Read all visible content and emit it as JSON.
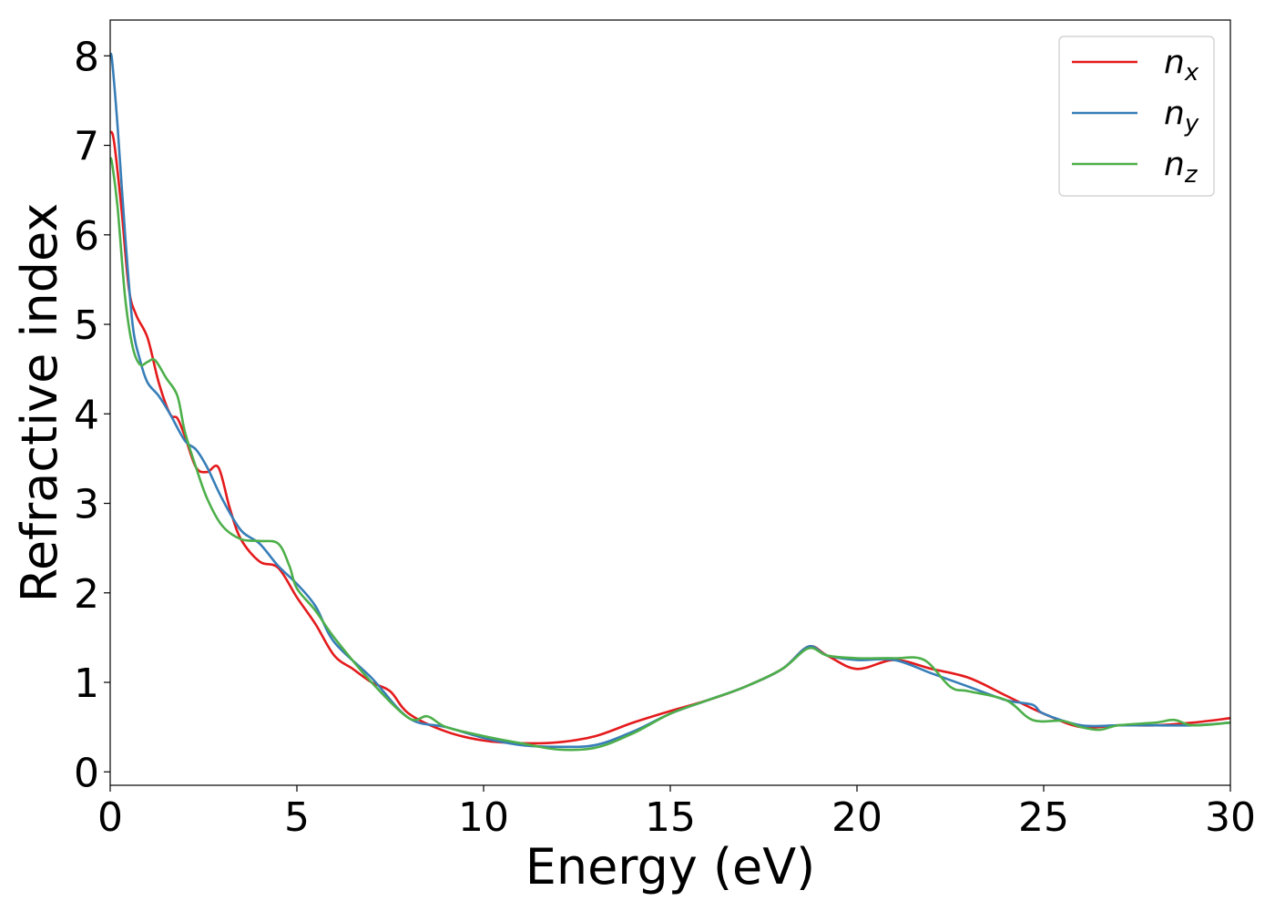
{
  "chart_data": {
    "type": "line",
    "xlabel": "Energy (eV)",
    "ylabel": "Refractive index",
    "xlim": [
      0,
      30
    ],
    "ylim": [
      -0.15,
      8.4
    ],
    "xticks": [
      0,
      5,
      10,
      15,
      20,
      25,
      30
    ],
    "yticks": [
      0,
      1,
      2,
      3,
      4,
      5,
      6,
      7,
      8
    ],
    "grid": false,
    "legend_position": "top-right",
    "series": [
      {
        "name": "n_x",
        "label_main": "n",
        "label_sub": "x",
        "color": "#e41a1c",
        "x": [
          0.0,
          0.1,
          0.3,
          0.5,
          0.7,
          1.0,
          1.3,
          1.6,
          1.8,
          2.0,
          2.3,
          2.6,
          2.9,
          3.2,
          3.5,
          4.0,
          4.5,
          5.0,
          5.5,
          6.0,
          6.5,
          7.0,
          7.5,
          8.0,
          9.0,
          10.0,
          11.0,
          12.0,
          13.0,
          14.0,
          15.0,
          16.0,
          17.0,
          18.0,
          18.7,
          19.2,
          20.0,
          21.0,
          22.0,
          23.0,
          24.0,
          25.0,
          26.0,
          27.0,
          28.0,
          29.0,
          30.0
        ],
        "y": [
          7.15,
          7.05,
          6.3,
          5.4,
          5.1,
          4.85,
          4.35,
          4.0,
          3.95,
          3.75,
          3.4,
          3.35,
          3.4,
          2.95,
          2.6,
          2.35,
          2.28,
          1.95,
          1.65,
          1.3,
          1.15,
          1.0,
          0.9,
          0.65,
          0.45,
          0.35,
          0.32,
          0.33,
          0.4,
          0.55,
          0.68,
          0.8,
          0.95,
          1.15,
          1.4,
          1.3,
          1.15,
          1.25,
          1.15,
          1.05,
          0.85,
          0.65,
          0.5,
          0.52,
          0.52,
          0.55,
          0.6
        ]
      },
      {
        "name": "n_y",
        "label_main": "n",
        "label_sub": "y",
        "color": "#377eb8",
        "x": [
          0.0,
          0.05,
          0.2,
          0.4,
          0.6,
          0.8,
          1.0,
          1.3,
          1.6,
          2.0,
          2.3,
          2.6,
          3.0,
          3.5,
          4.0,
          4.5,
          5.0,
          5.5,
          6.0,
          7.0,
          8.0,
          9.0,
          10.0,
          11.0,
          12.0,
          13.0,
          14.0,
          15.0,
          16.0,
          17.0,
          18.0,
          18.7,
          19.2,
          20.0,
          21.0,
          22.0,
          23.0,
          24.0,
          24.7,
          25.0,
          26.0,
          27.0,
          28.0,
          29.0,
          30.0
        ],
        "y": [
          8.0,
          7.95,
          7.2,
          6.0,
          5.0,
          4.6,
          4.35,
          4.2,
          4.0,
          3.7,
          3.6,
          3.4,
          3.05,
          2.7,
          2.55,
          2.3,
          2.1,
          1.85,
          1.45,
          1.05,
          0.6,
          0.5,
          0.38,
          0.3,
          0.28,
          0.3,
          0.45,
          0.65,
          0.8,
          0.95,
          1.15,
          1.4,
          1.3,
          1.25,
          1.25,
          1.1,
          0.95,
          0.8,
          0.75,
          0.65,
          0.52,
          0.52,
          0.52,
          0.52,
          0.55
        ]
      },
      {
        "name": "n_z",
        "label_main": "n",
        "label_sub": "z",
        "color": "#4daf4a",
        "x": [
          0.0,
          0.05,
          0.2,
          0.4,
          0.6,
          0.8,
          1.0,
          1.2,
          1.5,
          1.8,
          2.0,
          2.3,
          2.6,
          3.0,
          3.5,
          4.0,
          4.5,
          4.8,
          5.0,
          5.5,
          6.0,
          7.0,
          8.0,
          8.5,
          9.0,
          10.0,
          11.0,
          12.0,
          13.0,
          14.0,
          15.0,
          16.0,
          17.0,
          18.0,
          18.7,
          19.2,
          20.0,
          21.0,
          21.8,
          22.5,
          23.0,
          24.0,
          24.7,
          25.5,
          26.0,
          26.5,
          27.0,
          28.0,
          28.5,
          29.0,
          30.0
        ],
        "y": [
          6.85,
          6.8,
          6.3,
          5.3,
          4.75,
          4.55,
          4.58,
          4.6,
          4.4,
          4.2,
          3.8,
          3.4,
          3.05,
          2.75,
          2.6,
          2.58,
          2.55,
          2.3,
          2.05,
          1.8,
          1.5,
          1.0,
          0.6,
          0.62,
          0.5,
          0.4,
          0.32,
          0.25,
          0.27,
          0.43,
          0.65,
          0.8,
          0.95,
          1.15,
          1.38,
          1.3,
          1.27,
          1.27,
          1.25,
          0.95,
          0.9,
          0.8,
          0.58,
          0.57,
          0.5,
          0.47,
          0.52,
          0.55,
          0.58,
          0.52,
          0.55
        ]
      }
    ]
  }
}
